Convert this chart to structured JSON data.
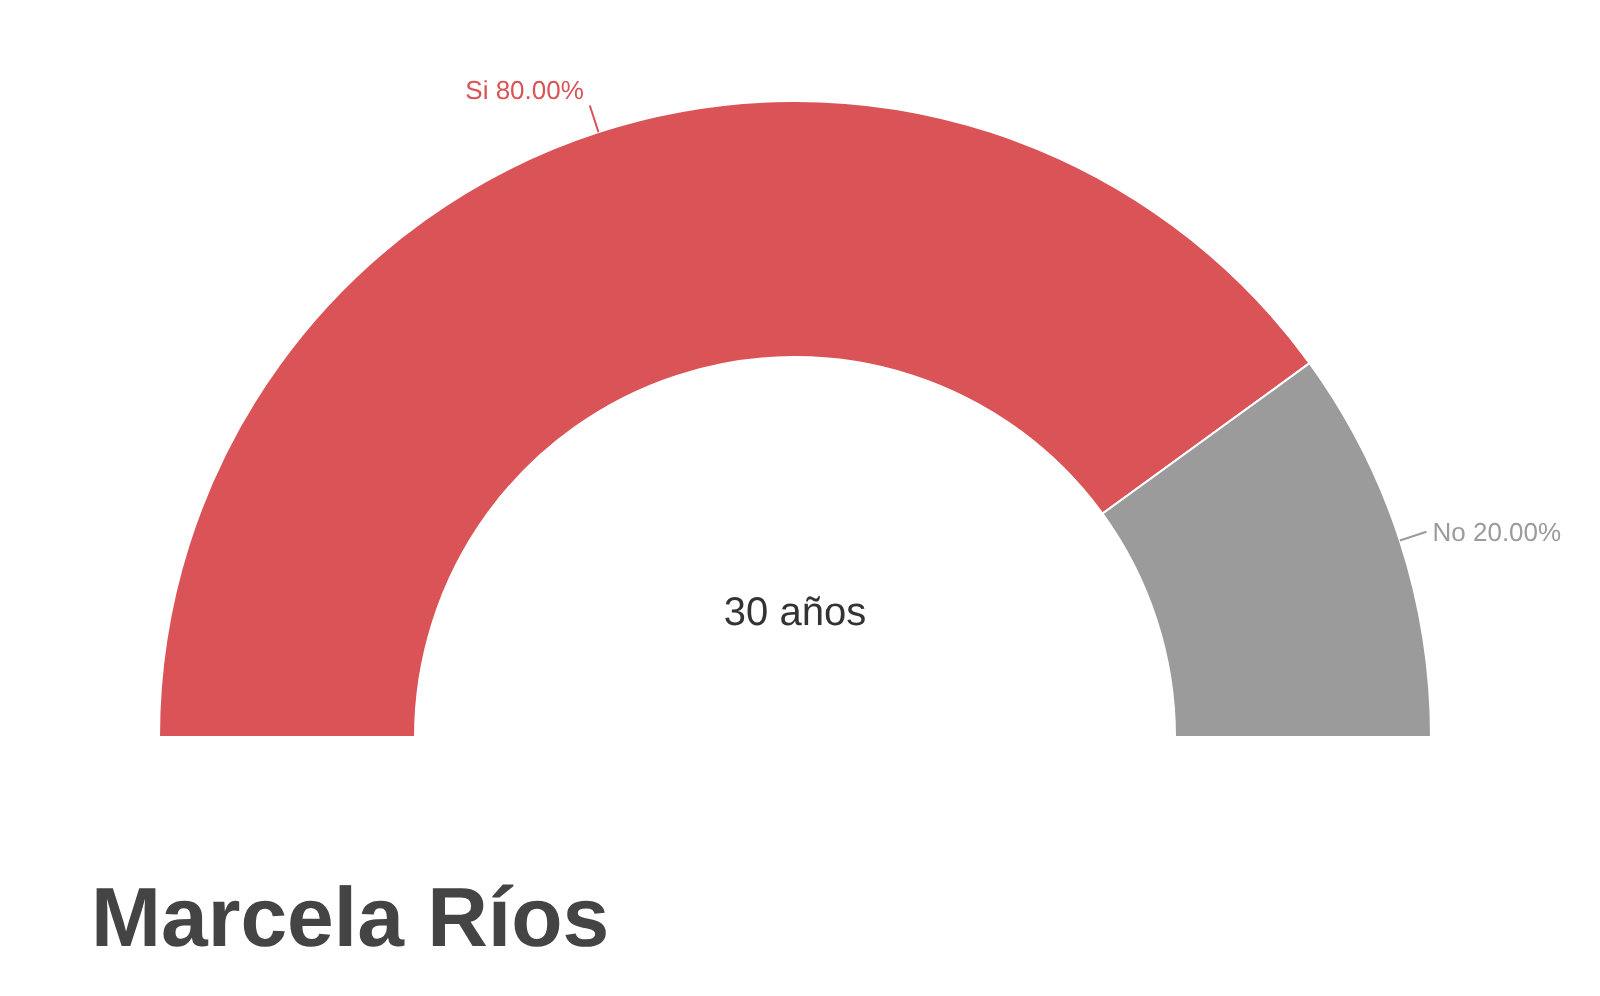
{
  "chart_data": {
    "type": "donut",
    "title": "Marcela Ríos",
    "categories": [
      "Si",
      "No"
    ],
    "values": [
      80,
      20
    ],
    "colors": [
      "#d95357",
      "#9b9b9b"
    ],
    "value_labels": [
      "80.00%",
      "20.00%"
    ],
    "annotations": [
      "30 años"
    ]
  }
}
